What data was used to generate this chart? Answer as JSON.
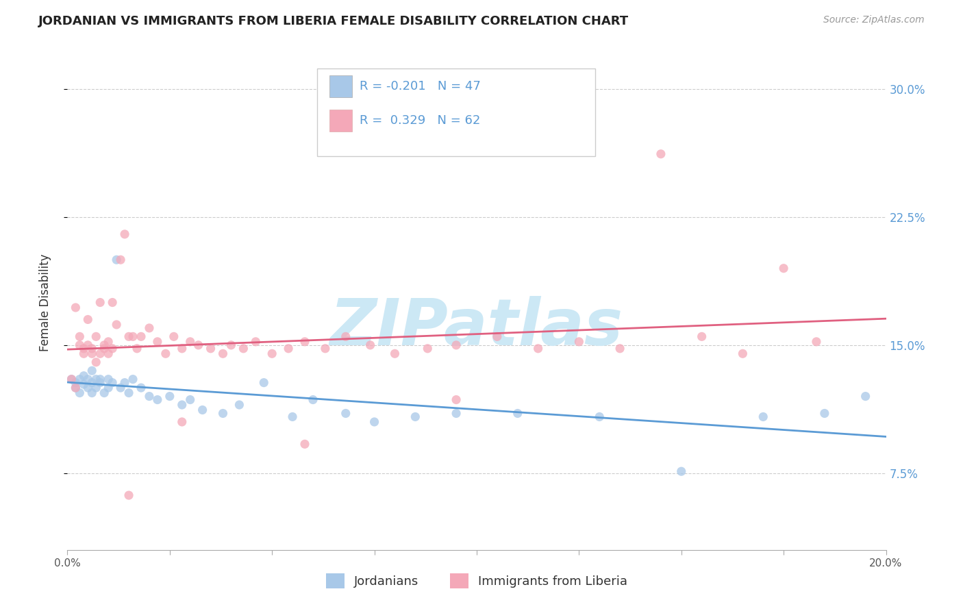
{
  "title": "JORDANIAN VS IMMIGRANTS FROM LIBERIA FEMALE DISABILITY CORRELATION CHART",
  "source": "Source: ZipAtlas.com",
  "ylabel": "Female Disability",
  "ytick_labels": [
    "7.5%",
    "15.0%",
    "22.5%",
    "30.0%"
  ],
  "ytick_values": [
    0.075,
    0.15,
    0.225,
    0.3
  ],
  "xlim": [
    0.0,
    0.2
  ],
  "ylim": [
    0.03,
    0.32
  ],
  "legend_labels_bottom": [
    "Jordanians",
    "Immigrants from Liberia"
  ],
  "jordanians_color": "#a8c8e8",
  "liberia_color": "#f4a8b8",
  "line_jordan_color": "#5b9bd5",
  "line_liberia_color": "#e06080",
  "text_blue": "#5b9bd5",
  "watermark_text": "ZIPatlas",
  "watermark_color": "#cce8f5",
  "jordan_x": [
    0.001,
    0.002,
    0.002,
    0.003,
    0.003,
    0.004,
    0.004,
    0.005,
    0.005,
    0.006,
    0.006,
    0.006,
    0.007,
    0.007,
    0.008,
    0.008,
    0.009,
    0.01,
    0.01,
    0.011,
    0.012,
    0.013,
    0.014,
    0.015,
    0.016,
    0.018,
    0.02,
    0.022,
    0.025,
    0.028,
    0.03,
    0.033,
    0.038,
    0.042,
    0.048,
    0.055,
    0.06,
    0.068,
    0.075,
    0.085,
    0.095,
    0.11,
    0.13,
    0.15,
    0.17,
    0.185,
    0.195
  ],
  "jordan_y": [
    0.13,
    0.128,
    0.125,
    0.122,
    0.13,
    0.127,
    0.132,
    0.125,
    0.13,
    0.135,
    0.128,
    0.122,
    0.13,
    0.125,
    0.128,
    0.13,
    0.122,
    0.125,
    0.13,
    0.128,
    0.2,
    0.125,
    0.128,
    0.122,
    0.13,
    0.125,
    0.12,
    0.118,
    0.12,
    0.115,
    0.118,
    0.112,
    0.11,
    0.115,
    0.128,
    0.108,
    0.118,
    0.11,
    0.105,
    0.108,
    0.11,
    0.11,
    0.108,
    0.076,
    0.108,
    0.11,
    0.12
  ],
  "liberia_x": [
    0.001,
    0.002,
    0.002,
    0.003,
    0.003,
    0.004,
    0.004,
    0.005,
    0.005,
    0.006,
    0.006,
    0.007,
    0.007,
    0.008,
    0.008,
    0.009,
    0.009,
    0.01,
    0.01,
    0.011,
    0.011,
    0.012,
    0.013,
    0.014,
    0.015,
    0.016,
    0.017,
    0.018,
    0.02,
    0.022,
    0.024,
    0.026,
    0.028,
    0.03,
    0.032,
    0.035,
    0.038,
    0.04,
    0.043,
    0.046,
    0.05,
    0.054,
    0.058,
    0.063,
    0.068,
    0.074,
    0.08,
    0.088,
    0.095,
    0.105,
    0.115,
    0.125,
    0.135,
    0.145,
    0.155,
    0.165,
    0.175,
    0.183,
    0.058,
    0.095,
    0.015,
    0.028
  ],
  "liberia_y": [
    0.13,
    0.172,
    0.125,
    0.15,
    0.155,
    0.145,
    0.148,
    0.165,
    0.15,
    0.145,
    0.148,
    0.155,
    0.14,
    0.145,
    0.175,
    0.148,
    0.15,
    0.145,
    0.152,
    0.175,
    0.148,
    0.162,
    0.2,
    0.215,
    0.155,
    0.155,
    0.148,
    0.155,
    0.16,
    0.152,
    0.145,
    0.155,
    0.148,
    0.152,
    0.15,
    0.148,
    0.145,
    0.15,
    0.148,
    0.152,
    0.145,
    0.148,
    0.152,
    0.148,
    0.155,
    0.15,
    0.145,
    0.148,
    0.15,
    0.155,
    0.148,
    0.152,
    0.148,
    0.262,
    0.155,
    0.145,
    0.195,
    0.152,
    0.092,
    0.118,
    0.062,
    0.105
  ]
}
